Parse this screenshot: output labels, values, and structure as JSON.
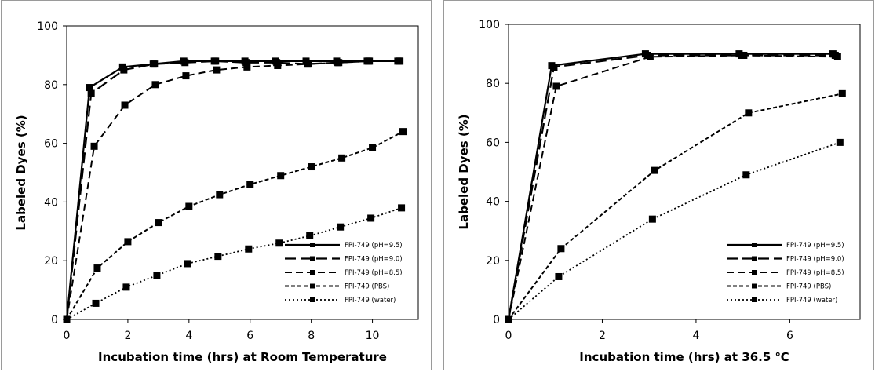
{
  "chart_data": [
    {
      "type": "line",
      "title": "",
      "xlabel": "Incubation time (hrs) at Room Temperature",
      "ylabel": "Labeled Dyes (%)",
      "xlim": [
        0,
        11.5
      ],
      "ylim": [
        0,
        100
      ],
      "xticks": [
        0,
        2,
        4,
        6,
        8,
        10
      ],
      "yticks": [
        0,
        20,
        40,
        60,
        80,
        100
      ],
      "grid": false,
      "legend_position": "bottom-right",
      "series": [
        {
          "name": "FPI-749 (pH=9.5)",
          "style": "solid",
          "x": [
            0,
            0.75,
            1.83,
            2.83,
            3.83,
            4.83,
            5.83,
            6.83,
            7.83,
            8.83,
            9.83,
            10.83
          ],
          "y": [
            0,
            79,
            86,
            87,
            88,
            88,
            88,
            88,
            88,
            88,
            88,
            88
          ]
        },
        {
          "name": "FPI-749 (pH=9.0)",
          "style": "long-dash",
          "x": [
            0,
            0.8,
            1.87,
            2.87,
            3.87,
            4.87,
            5.87,
            6.87,
            7.87,
            8.87,
            9.87,
            10.87
          ],
          "y": [
            0,
            77,
            85,
            87,
            87.5,
            88,
            87.5,
            87.5,
            87,
            87.5,
            88,
            88
          ]
        },
        {
          "name": "FPI-749 (pH=8.5)",
          "style": "dash",
          "x": [
            0,
            0.9,
            1.9,
            2.9,
            3.9,
            4.9,
            5.9,
            6.9,
            7.9,
            8.9,
            9.9,
            10.9
          ],
          "y": [
            0,
            59,
            73,
            80,
            83,
            85,
            86,
            86.5,
            87,
            87.5,
            88,
            88
          ]
        },
        {
          "name": "FPI-749 (PBS)",
          "style": "short-dash",
          "x": [
            0,
            1.0,
            2.0,
            3.0,
            4.0,
            5.0,
            6.0,
            7.0,
            8.0,
            9.0,
            10.0,
            11.0
          ],
          "y": [
            0,
            17.5,
            26.5,
            33,
            38.5,
            42.5,
            46,
            49,
            52,
            55,
            58.5,
            64
          ]
        },
        {
          "name": "FPI-749 (water)",
          "style": "dot",
          "x": [
            0,
            0.95,
            1.95,
            2.95,
            3.95,
            4.95,
            5.95,
            6.95,
            7.95,
            8.95,
            9.95,
            10.95
          ],
          "y": [
            0,
            5.5,
            11,
            15,
            19,
            21.5,
            24,
            26,
            28.5,
            31.5,
            34.5,
            38
          ]
        }
      ]
    },
    {
      "type": "line",
      "title": "",
      "xlabel": "Incubation time (hrs) at 36.5 ℃",
      "ylabel": "Labeled Dyes (%)",
      "xlim": [
        0,
        7.5
      ],
      "ylim": [
        0,
        100
      ],
      "xticks": [
        0,
        2,
        4,
        6
      ],
      "yticks": [
        0,
        20,
        40,
        60,
        80,
        100
      ],
      "grid": false,
      "legend_position": "bottom-right",
      "series": [
        {
          "name": "FPI-749 (pH=9.5)",
          "style": "solid",
          "x": [
            0,
            0.92,
            2.92,
            4.92,
            6.92
          ],
          "y": [
            0,
            86,
            90,
            90,
            90
          ]
        },
        {
          "name": "FPI-749 (pH=9.0)",
          "style": "long-dash",
          "x": [
            0,
            0.97,
            2.97,
            4.97,
            6.97
          ],
          "y": [
            0,
            85.5,
            89.5,
            89.5,
            89.5
          ]
        },
        {
          "name": "FPI-749 (pH=8.5)",
          "style": "dash",
          "x": [
            0,
            1.02,
            3.02,
            5.02,
            7.02
          ],
          "y": [
            0,
            79,
            89,
            89.5,
            89
          ]
        },
        {
          "name": "FPI-749 (PBS)",
          "style": "short-dash",
          "x": [
            0,
            1.12,
            3.12,
            5.12,
            7.12
          ],
          "y": [
            0,
            24,
            50.5,
            70,
            76.5
          ]
        },
        {
          "name": "FPI-749 (water)",
          "style": "dot",
          "x": [
            0,
            1.07,
            3.07,
            5.07,
            7.07
          ],
          "y": [
            0,
            14.5,
            34,
            49,
            60
          ]
        }
      ]
    }
  ]
}
